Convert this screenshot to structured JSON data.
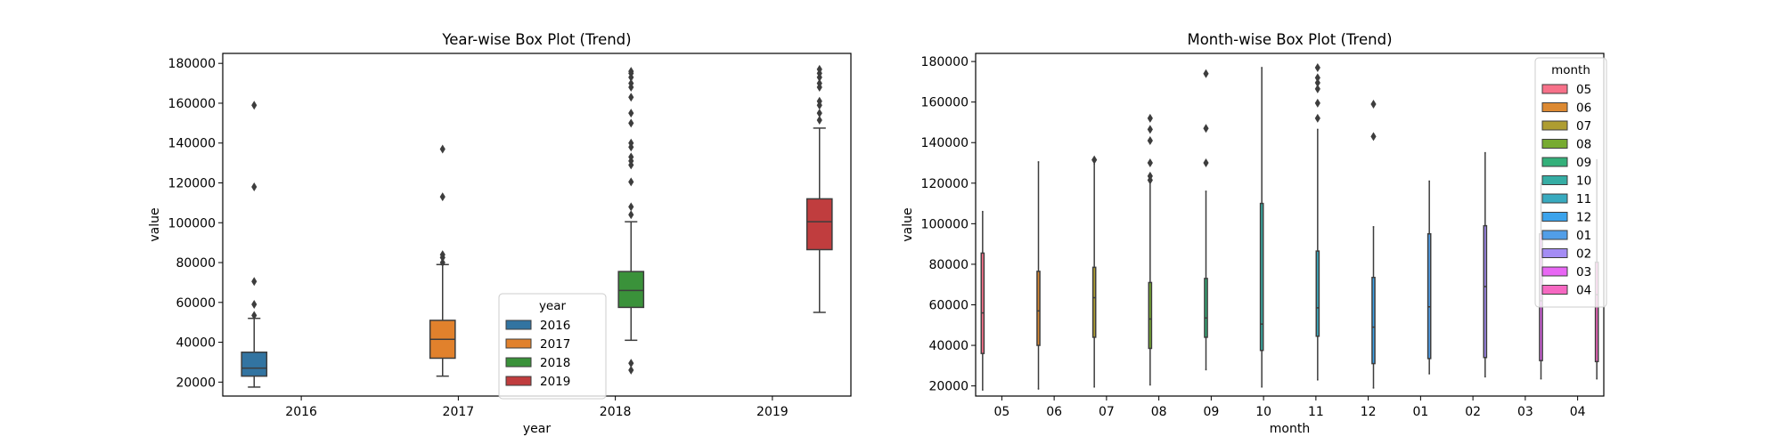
{
  "chart_data": [
    {
      "type": "box",
      "title": "Year-wise Box Plot (Trend)",
      "xlabel": "year",
      "ylabel": "value",
      "ylim": [
        13000,
        185000
      ],
      "yticks": [
        20000,
        40000,
        60000,
        80000,
        100000,
        120000,
        140000,
        160000,
        180000
      ],
      "categories": [
        "2016",
        "2017",
        "2018",
        "2019"
      ],
      "legend": {
        "title": "year",
        "position": "lower-center"
      },
      "series": [
        {
          "name": "2016",
          "color": "#3274a1",
          "offset": 0,
          "min": 17500,
          "q1": 23000,
          "median": 27000,
          "q3": 35000,
          "max": 52000,
          "outliers": [
            53500,
            59000,
            70500,
            118000,
            159000
          ]
        },
        {
          "name": "2017",
          "color": "#e1812c",
          "offset": 1,
          "min": 23000,
          "q1": 32000,
          "median": 41500,
          "q3": 51000,
          "max": 79000,
          "outliers": [
            80000,
            82500,
            84000,
            113000,
            137000
          ]
        },
        {
          "name": "2018",
          "color": "#3a923a",
          "offset": 2,
          "min": 41000,
          "q1": 57500,
          "median": 66000,
          "q3": 75500,
          "max": 100500,
          "outliers": [
            26000,
            29500,
            104000,
            108000,
            120500,
            129000,
            131000,
            133000,
            138000,
            140000,
            150000,
            155000,
            163000,
            168000,
            170000,
            173000,
            175000,
            176000
          ]
        },
        {
          "name": "2019",
          "color": "#c03d3e",
          "offset": 3,
          "min": 55000,
          "q1": 86500,
          "median": 100500,
          "q3": 112000,
          "max": 147500,
          "outliers": [
            151500,
            155000,
            159000,
            161000,
            168000,
            170000,
            173000,
            175000,
            177000
          ]
        }
      ]
    },
    {
      "type": "box",
      "title": "Month-wise Box Plot (Trend)",
      "xlabel": "month",
      "ylabel": "value",
      "ylim": [
        15000,
        184000
      ],
      "yticks": [
        20000,
        40000,
        60000,
        80000,
        100000,
        120000,
        140000,
        160000,
        180000
      ],
      "categories": [
        "05",
        "06",
        "07",
        "08",
        "09",
        "10",
        "11",
        "12",
        "01",
        "02",
        "03",
        "04"
      ],
      "legend": {
        "title": "month",
        "position": "upper-right"
      },
      "series": [
        {
          "name": "05",
          "color": "#f77189",
          "offset": 0,
          "min": 18000,
          "q1": 36000,
          "median": 56000,
          "q3": 85500,
          "max": 106000,
          "outliers": []
        },
        {
          "name": "06",
          "color": "#dc8932",
          "offset": 1,
          "min": 18500,
          "q1": 40000,
          "median": 57000,
          "q3": 76500,
          "max": 130500,
          "outliers": []
        },
        {
          "name": "07",
          "color": "#ae9d31",
          "offset": 2,
          "min": 19500,
          "q1": 44000,
          "median": 63500,
          "q3": 78500,
          "max": 129500,
          "outliers": [
            131500
          ]
        },
        {
          "name": "08",
          "color": "#77ab31",
          "offset": 3,
          "min": 20500,
          "q1": 38500,
          "median": 53000,
          "q3": 71000,
          "max": 120500,
          "outliers": [
            121500,
            123500,
            130000,
            141000,
            146500,
            152000
          ]
        },
        {
          "name": "09",
          "color": "#33b07a",
          "offset": 4,
          "min": 28000,
          "q1": 44000,
          "median": 53500,
          "q3": 73000,
          "max": 116000,
          "outliers": [
            130000,
            147000,
            174000
          ]
        },
        {
          "name": "10",
          "color": "#36ada4",
          "offset": 5,
          "min": 19500,
          "q1": 37500,
          "median": 50500,
          "q3": 110000,
          "max": 177000,
          "outliers": []
        },
        {
          "name": "11",
          "color": "#38aabf",
          "offset": 6,
          "min": 23000,
          "q1": 44500,
          "median": 58500,
          "q3": 86500,
          "max": 146500,
          "outliers": [
            152000,
            159500,
            166500,
            169500,
            172000,
            177000
          ]
        },
        {
          "name": "12",
          "color": "#3ba3ec",
          "offset": 7,
          "min": 19000,
          "q1": 31000,
          "median": 49000,
          "q3": 73500,
          "max": 98500,
          "outliers": [
            143000,
            159000
          ]
        },
        {
          "name": "01",
          "color": "#519ee8",
          "offset": 8,
          "min": 26000,
          "q1": 33500,
          "median": 59000,
          "q3": 95000,
          "max": 121000,
          "outliers": []
        },
        {
          "name": "02",
          "color": "#a48cf4",
          "offset": 9,
          "min": 24500,
          "q1": 34000,
          "median": 69000,
          "q3": 99000,
          "max": 135000,
          "outliers": []
        },
        {
          "name": "03",
          "color": "#e866f4",
          "offset": 10,
          "min": 23500,
          "q1": 32500,
          "median": 62000,
          "q3": 95000,
          "max": 120000,
          "outliers": []
        },
        {
          "name": "04",
          "color": "#f668c2",
          "offset": 11,
          "min": 23500,
          "q1": 32000,
          "median": 65000,
          "q3": 81000,
          "max": 131500,
          "outliers": []
        }
      ]
    }
  ]
}
